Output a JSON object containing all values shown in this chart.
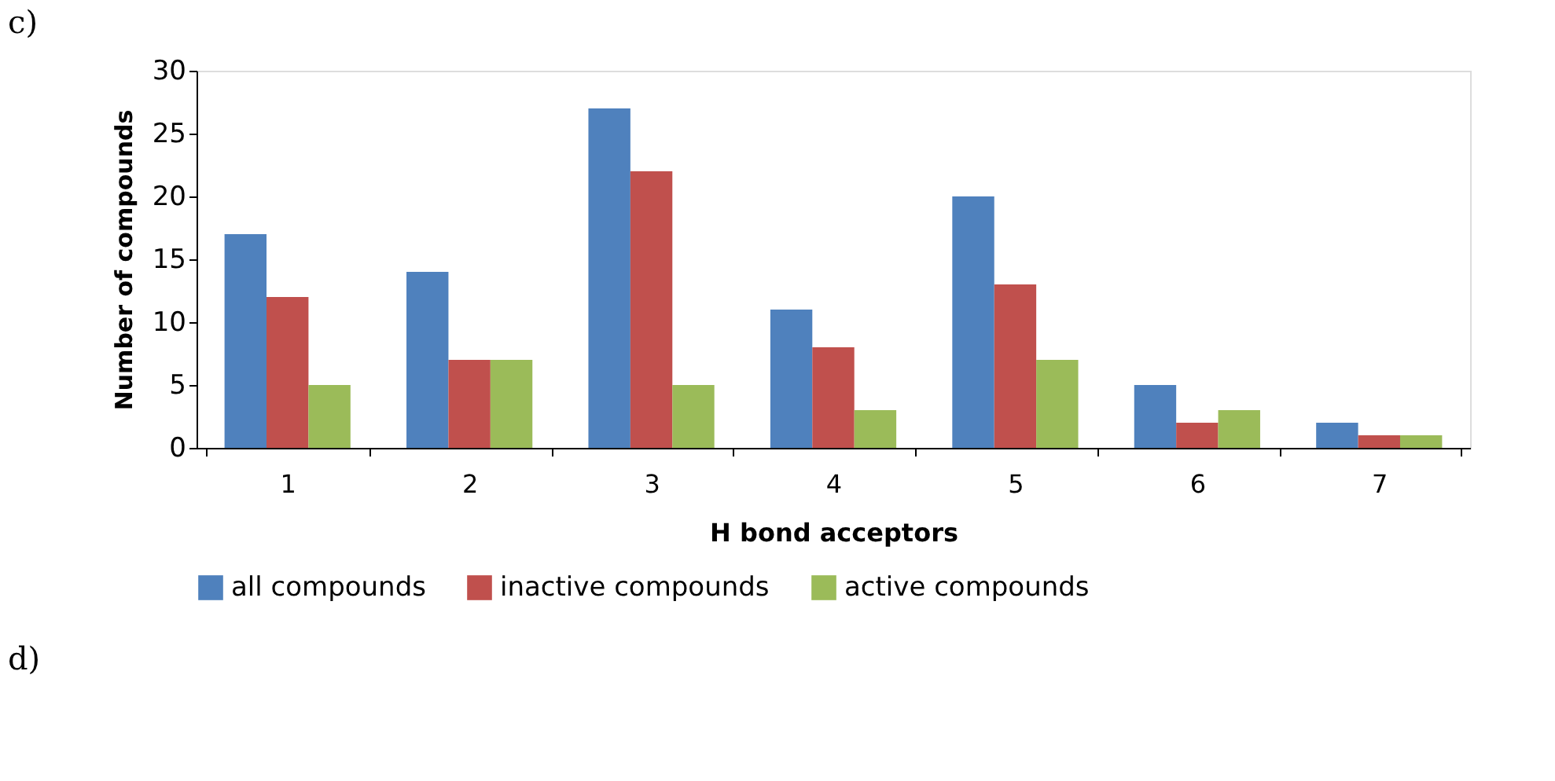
{
  "chart_data": {
    "type": "bar",
    "xlabel": "H bond acceptors",
    "ylabel": "Number of compounds",
    "categories": [
      "1",
      "2",
      "3",
      "4",
      "5",
      "6",
      "7"
    ],
    "series": [
      {
        "name": "all compounds",
        "color": "#4f81bd",
        "values": [
          17,
          14,
          27,
          11,
          20,
          5,
          2
        ]
      },
      {
        "name": "inactive compounds",
        "color": "#c0504d",
        "values": [
          12,
          7,
          22,
          8,
          13,
          2,
          1
        ]
      },
      {
        "name": "active compounds",
        "color": "#9bbb59",
        "values": [
          5,
          7,
          5,
          3,
          7,
          3,
          1
        ]
      }
    ],
    "ylim": [
      0,
      30
    ],
    "yticks": [
      0,
      5,
      10,
      15,
      20,
      25,
      30
    ],
    "grid": false,
    "legend": "bottom",
    "annotations": [
      "c)",
      "d)"
    ]
  }
}
